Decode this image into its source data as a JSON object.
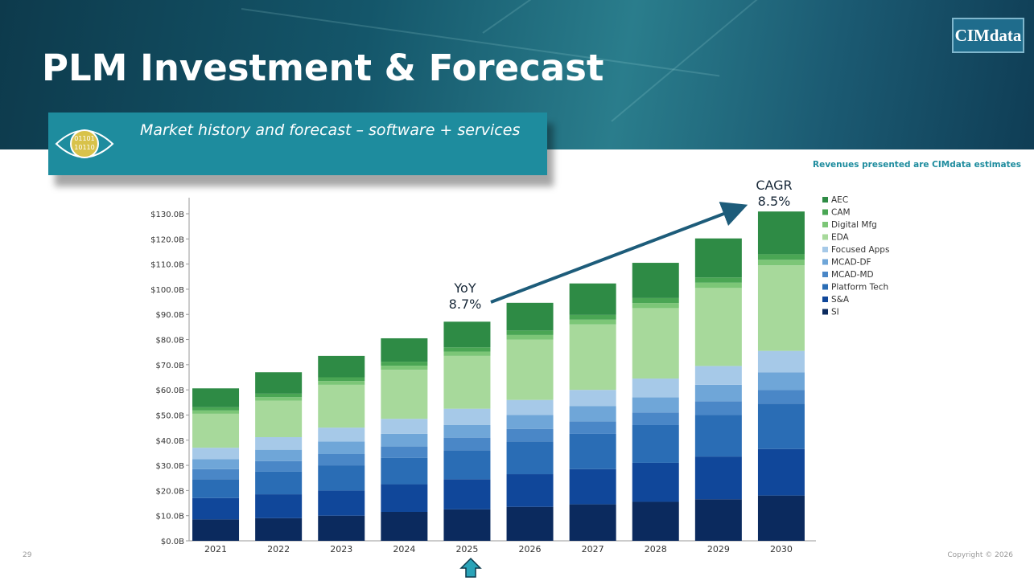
{
  "slide": {
    "title": "PLM Investment & Forecast",
    "logo": "CIMdata",
    "subtitle": "Market history and forecast – software + services",
    "note": "Revenues presented are CIMdata estimates",
    "page_number": "29",
    "copyright": "Copyright © 2026"
  },
  "chart_data": {
    "type": "stacked-bar",
    "categories": [
      "2021",
      "2022",
      "2023",
      "2024",
      "2025",
      "2026",
      "2027",
      "2028",
      "2029",
      "2030"
    ],
    "series": [
      {
        "name": "AEC",
        "color": "#2e8b45",
        "values": [
          7.5,
          8.5,
          8.5,
          9.3,
          10.2,
          11,
          12.5,
          14,
          15.5,
          17
        ]
      },
      {
        "name": "CAM",
        "color": "#4aa654",
        "values": [
          1.3,
          1.4,
          1.5,
          1.6,
          1.7,
          1.8,
          1.9,
          2,
          2.1,
          2.2
        ]
      },
      {
        "name": "Digital Mfg",
        "color": "#7cc677",
        "values": [
          1.3,
          1.4,
          1.5,
          1.6,
          1.7,
          1.8,
          1.9,
          2,
          2.1,
          2.2
        ]
      },
      {
        "name": "EDA",
        "color": "#a7d99b",
        "values": [
          13.5,
          14.5,
          17,
          19.5,
          21,
          24,
          26,
          28,
          31,
          34
        ]
      },
      {
        "name": "Focused Apps",
        "color": "#a6c9e8",
        "values": [
          4.5,
          5,
          5.5,
          6,
          6.5,
          6,
          6.5,
          7.5,
          7.5,
          8.5
        ]
      },
      {
        "name": "MCAD-DF",
        "color": "#6fa6d8",
        "values": [
          4,
          4.5,
          5,
          5,
          5,
          5.5,
          6,
          6,
          6.5,
          7
        ]
      },
      {
        "name": "MCAD-MD",
        "color": "#4a87c7",
        "values": [
          4,
          4.2,
          4.5,
          4.5,
          5,
          5,
          5,
          5,
          5.5,
          5.5
        ]
      },
      {
        "name": "Platform Tech",
        "color": "#2a6db5",
        "values": [
          7.5,
          9,
          10,
          10.5,
          11.5,
          13,
          14,
          15,
          16.5,
          18
        ]
      },
      {
        "name": "S&A",
        "color": "#10479a",
        "values": [
          8.5,
          9.5,
          10,
          11,
          12,
          13,
          14,
          15.5,
          17,
          18.5
        ]
      },
      {
        "name": "SI",
        "color": "#0b2a5e",
        "values": [
          8.5,
          9,
          10,
          11.5,
          12.5,
          13.5,
          14.5,
          15.5,
          16.5,
          18
        ]
      }
    ],
    "ylim": [
      0,
      130
    ],
    "yticks": [
      {
        "value": 0,
        "label": "$0.0B"
      },
      {
        "value": 10,
        "label": "$10.0B"
      },
      {
        "value": 20,
        "label": "$20.0B"
      },
      {
        "value": 30,
        "label": "$30.0B"
      },
      {
        "value": 40,
        "label": "$40.0B"
      },
      {
        "value": 50,
        "label": "$50.0B"
      },
      {
        "value": 60,
        "label": "$60.0B"
      },
      {
        "value": 70,
        "label": "$70.0B"
      },
      {
        "value": 80,
        "label": "$80.0B"
      },
      {
        "value": 90,
        "label": "$90.0B"
      },
      {
        "value": 100,
        "label": "$100.0B"
      },
      {
        "value": 110,
        "label": "$110.0B"
      },
      {
        "value": 120,
        "label": "$120.0B"
      },
      {
        "value": 130,
        "label": "$130.0B"
      }
    ],
    "annotations": [
      {
        "lines": [
          "YoY",
          "8.7%"
        ]
      },
      {
        "lines": [
          "CAGR",
          "8.5%"
        ]
      }
    ],
    "legend": "right"
  }
}
